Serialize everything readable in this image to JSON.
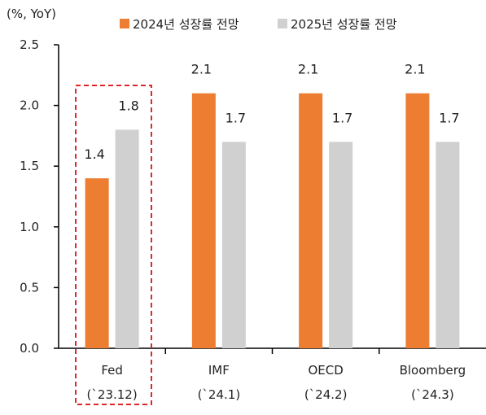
{
  "chart_data": {
    "type": "bar",
    "unit_label": "(%, YoY)",
    "categories": [
      "Fed",
      "IMF",
      "OECD",
      "Bloomberg"
    ],
    "category_sublabels": [
      "(`23.12)",
      "(`24.1)",
      "(`24.2)",
      "(`24.3)"
    ],
    "series": [
      {
        "name": "2024년 성장률 전망",
        "color": "#ED7D31",
        "values": [
          1.4,
          2.1,
          2.1,
          2.1
        ]
      },
      {
        "name": "2025년 성장률 전망",
        "color": "#D0D0D0",
        "values": [
          1.8,
          1.7,
          1.7,
          1.7
        ]
      }
    ],
    "value_labels": [
      [
        "1.4",
        "2.1",
        "2.1",
        "2.1"
      ],
      [
        "1.8",
        "1.7",
        "1.7",
        "1.7"
      ]
    ],
    "ylim": [
      0.0,
      2.5
    ],
    "yticks": [
      "0.0",
      "0.5",
      "1.0",
      "1.5",
      "2.0",
      "2.5"
    ],
    "highlight": {
      "category": "Fed",
      "style": "dashed-box",
      "color": "#E0262B"
    },
    "legend_position": "top",
    "grid": false
  }
}
